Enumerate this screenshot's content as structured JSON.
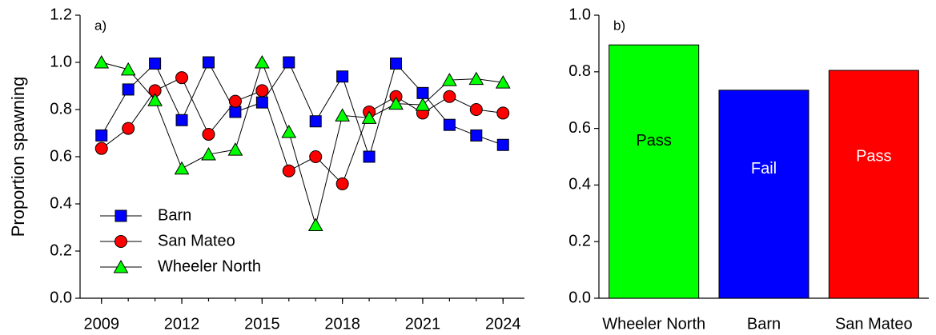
{
  "chart_data": [
    {
      "type": "line",
      "annotation": "a)",
      "y_label": "Proportion spawning",
      "x": [
        2009,
        2010,
        2011,
        2012,
        2013,
        2014,
        2015,
        2016,
        2017,
        2018,
        2019,
        2020,
        2021,
        2022,
        2023,
        2024
      ],
      "series": [
        {
          "name": "Barn",
          "color": "#0000ff",
          "marker": "square",
          "values": [
            0.69,
            0.885,
            0.995,
            0.755,
            1.0,
            0.79,
            0.83,
            1.0,
            0.75,
            0.94,
            0.6,
            0.995,
            0.87,
            0.735,
            0.69,
            0.65
          ]
        },
        {
          "name": "San Mateo",
          "color": "#ff0000",
          "marker": "circle",
          "values": [
            0.635,
            0.72,
            0.88,
            0.935,
            0.695,
            0.835,
            0.88,
            0.54,
            0.6,
            0.485,
            0.79,
            0.855,
            0.785,
            0.855,
            0.8,
            0.785
          ]
        },
        {
          "name": "Wheeler North",
          "color": "#00ff00",
          "marker": "triangle",
          "values": [
            1.0,
            0.97,
            0.84,
            0.55,
            0.61,
            0.63,
            1.0,
            0.705,
            0.31,
            0.775,
            0.765,
            0.825,
            0.82,
            0.925,
            0.93,
            0.915
          ]
        }
      ],
      "xlim": [
        2008.2,
        2024.8
      ],
      "xticks": [
        2009,
        2012,
        2015,
        2018,
        2021,
        2024
      ],
      "ylim": [
        0,
        1.2
      ],
      "yticks": [
        {
          "value": 0,
          "label": "0.0"
        },
        0.2,
        0.4,
        0.6,
        0.8,
        {
          "value": 1,
          "label": "1.0"
        },
        1.2
      ],
      "legend": "lower left"
    },
    {
      "type": "bar",
      "annotation": "b)",
      "categories": [
        "Wheeler North",
        "Barn",
        "San Mateo"
      ],
      "values": [
        0.895,
        0.735,
        0.805
      ],
      "colors": [
        "#00ff00",
        "#0000ff",
        "#ff0000"
      ],
      "bar_labels": [
        "Pass",
        "Fail",
        "Pass"
      ],
      "bar_label_colors": [
        "#000000",
        "#ffffff",
        "#ffffff"
      ],
      "ylim": [
        0,
        1
      ],
      "yticks": [
        {
          "value": 0,
          "label": "0.0"
        },
        0.2,
        0.4,
        0.6,
        0.8,
        {
          "value": 1,
          "label": "1.0"
        }
      ]
    }
  ]
}
